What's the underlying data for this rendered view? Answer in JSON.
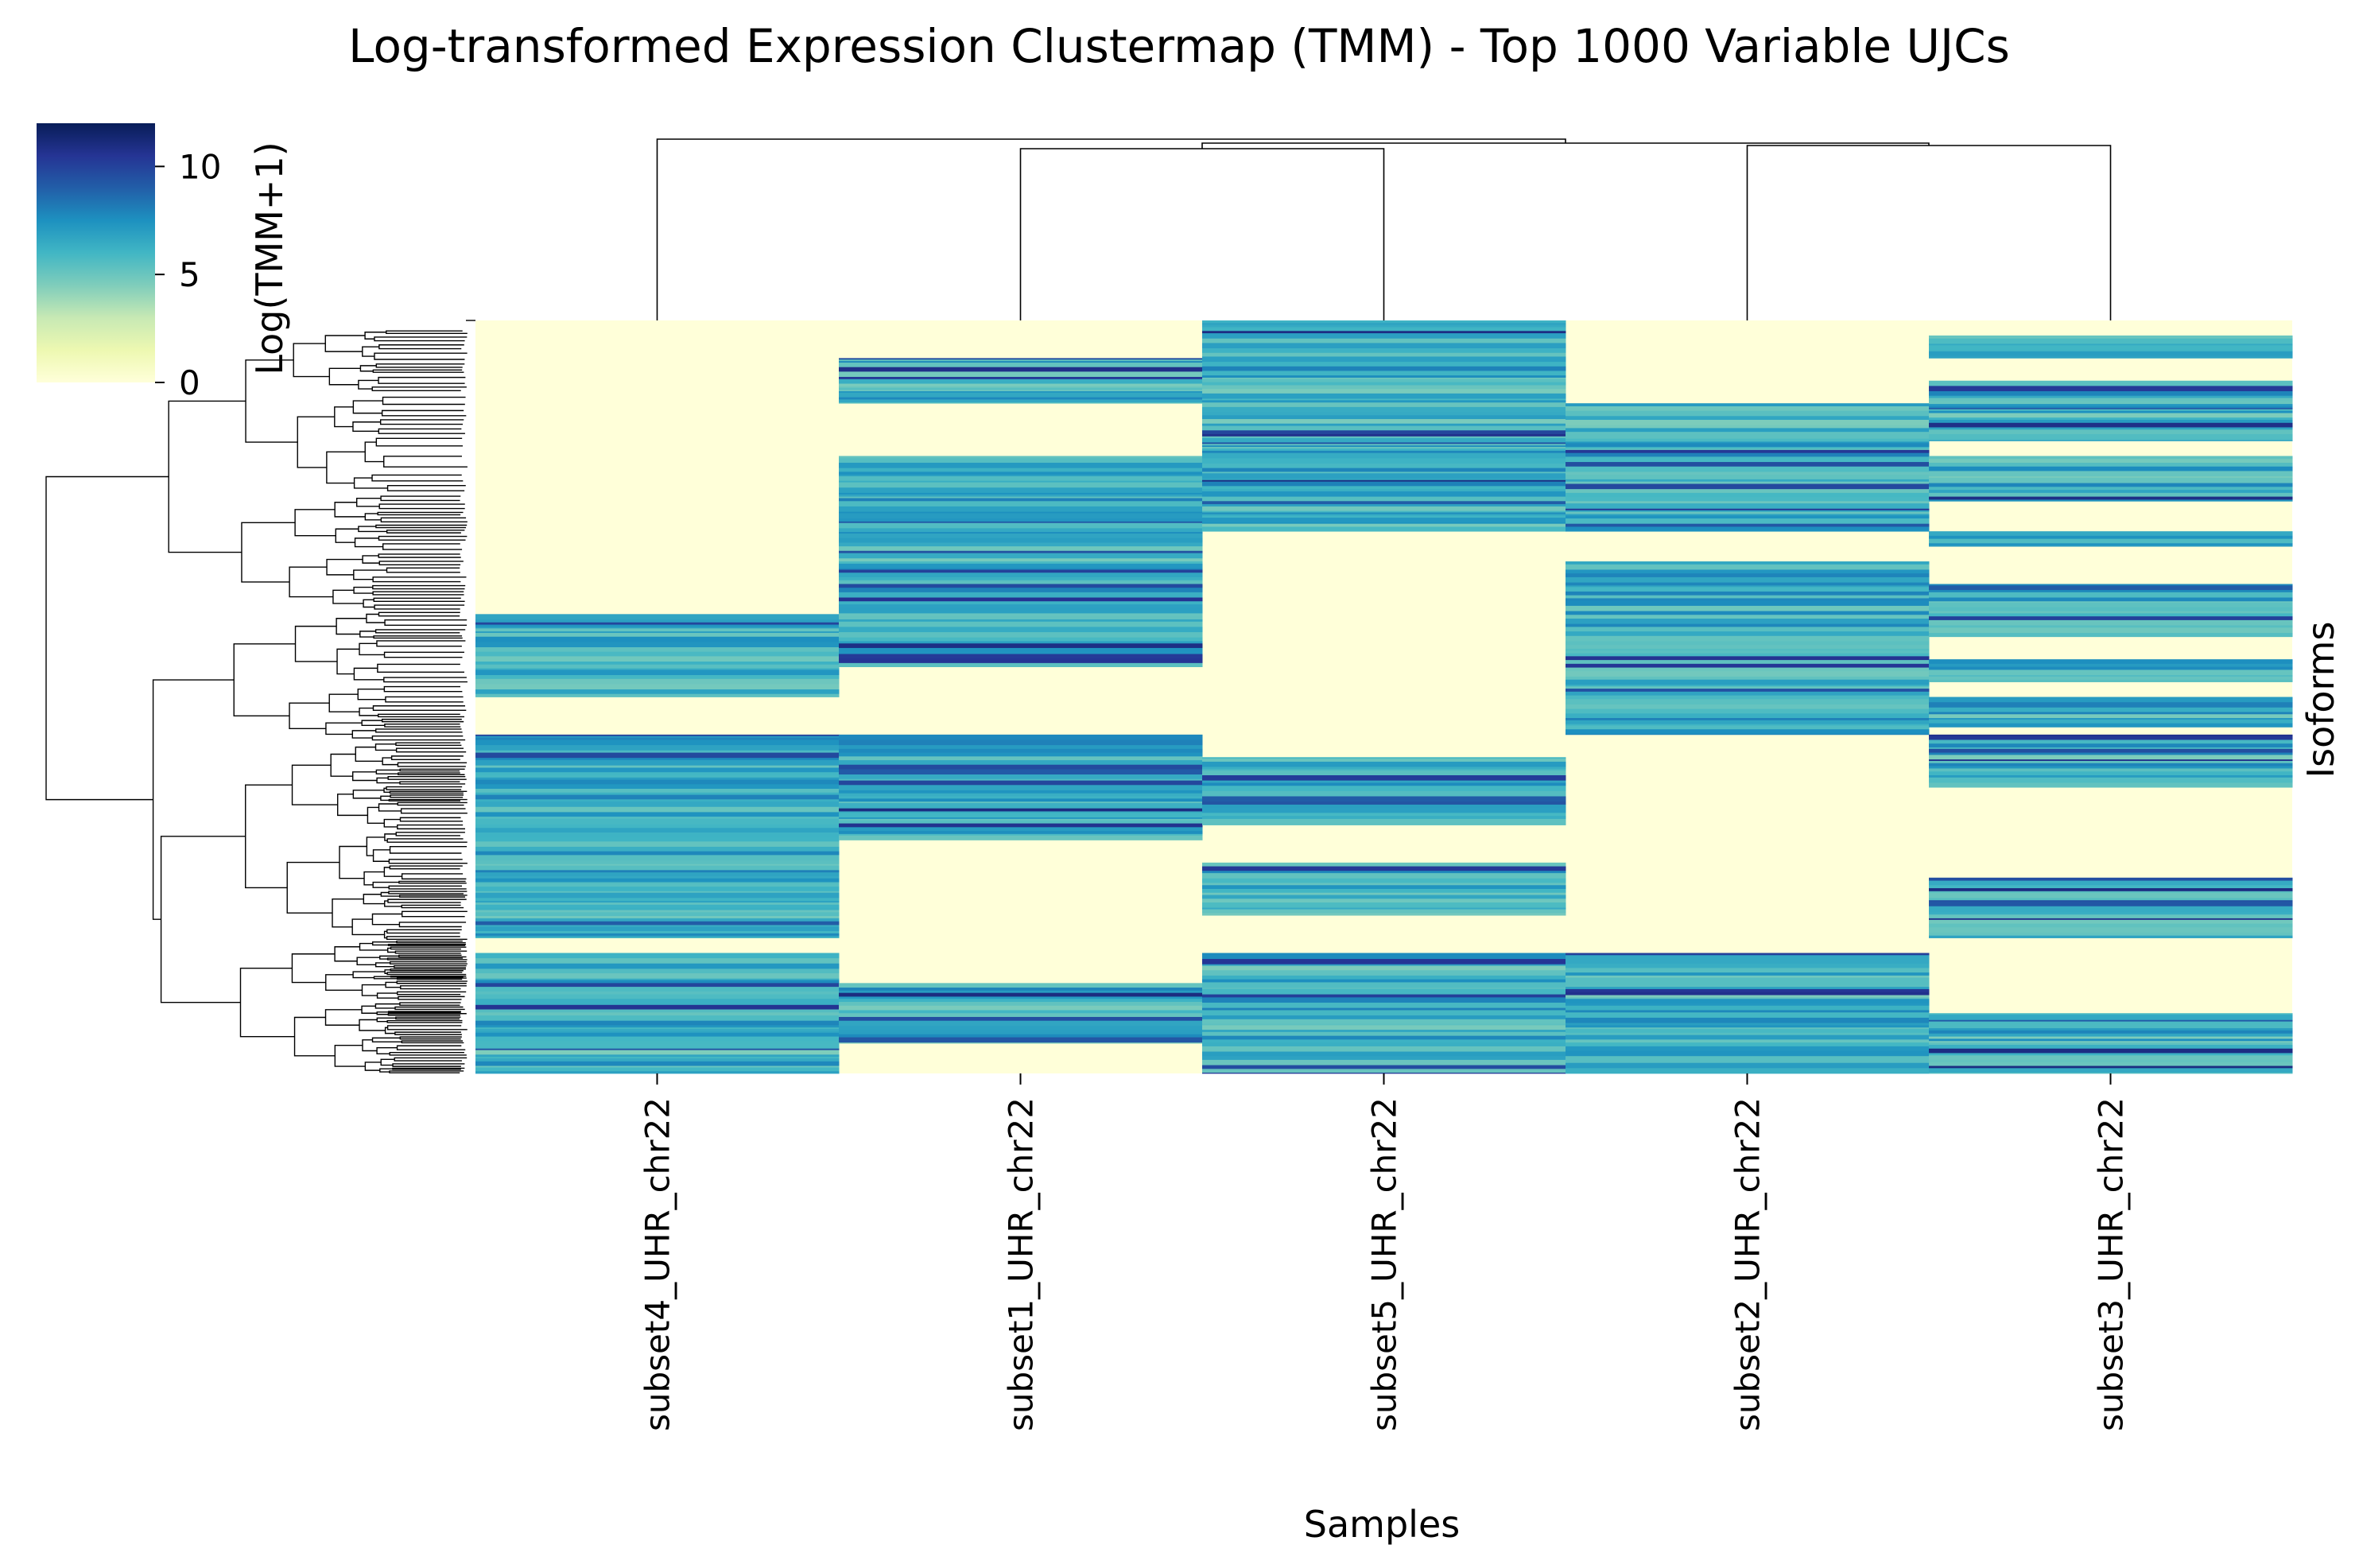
{
  "chart_data": {
    "type": "heatmap",
    "title": "Log-transformed Expression Clustermap (TMM) - Top 1000 Variable UJCs",
    "xlabel": "Samples",
    "ylabel": "Isoforms",
    "colorbar": {
      "label": "Log(TMM+1)",
      "ticks": [
        "0",
        "5",
        "10"
      ],
      "tick_values": [
        0,
        5,
        10
      ],
      "range": [
        0,
        12
      ],
      "colormap": "YlGnBu",
      "colors": [
        "#ffffd9",
        "#edf8b1",
        "#c7e9b4",
        "#7fcdbb",
        "#41b6c4",
        "#1d91c0",
        "#225ea8",
        "#253494",
        "#081d58"
      ]
    },
    "samples": [
      "subset4_UHR_chr22",
      "subset1_UHR_chr22",
      "subset5_UHR_chr22",
      "subset2_UHR_chr22",
      "subset3_UHR_chr22"
    ],
    "row_count": 1000,
    "row_dendrogram": "left",
    "col_dendrogram": "top",
    "approx_expressed_row_ranges": {
      "subset4_UHR_chr22": [
        [
          0.39,
          0.5
        ],
        [
          0.55,
          0.82
        ],
        [
          0.84,
          1.0
        ]
      ],
      "subset1_UHR_chr22": [
        [
          0.05,
          0.11
        ],
        [
          0.18,
          0.46
        ],
        [
          0.55,
          0.69
        ],
        [
          0.88,
          0.96
        ]
      ],
      "subset5_UHR_chr22": [
        [
          0.0,
          0.28
        ],
        [
          0.58,
          0.67
        ],
        [
          0.72,
          0.79
        ],
        [
          0.84,
          1.0
        ]
      ],
      "subset2_UHR_chr22": [
        [
          0.11,
          0.28
        ],
        [
          0.32,
          0.55
        ],
        [
          0.84,
          1.0
        ]
      ],
      "subset3_UHR_chr22": [
        [
          0.02,
          0.05
        ],
        [
          0.08,
          0.16
        ],
        [
          0.18,
          0.24
        ],
        [
          0.28,
          0.3
        ],
        [
          0.35,
          0.42
        ],
        [
          0.45,
          0.48
        ],
        [
          0.5,
          0.54
        ],
        [
          0.55,
          0.62
        ],
        [
          0.74,
          0.82
        ],
        [
          0.92,
          1.0
        ]
      ]
    },
    "typical_expressed_value": 6.5,
    "unexpressed_value": 0
  }
}
